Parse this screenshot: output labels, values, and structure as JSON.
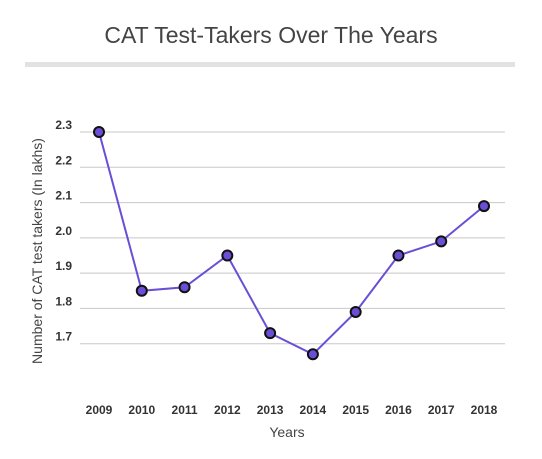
{
  "chart_data": {
    "type": "line",
    "title": "CAT Test-Takers Over The Years",
    "xlabel": "Years",
    "ylabel": "Number of CAT test takers (In lakhs)",
    "categories": [
      "2009",
      "2010",
      "2011",
      "2012",
      "2013",
      "2014",
      "2015",
      "2016",
      "2017",
      "2018"
    ],
    "series": [
      {
        "values": [
          2.3,
          1.85,
          1.86,
          1.95,
          1.73,
          1.67,
          1.79,
          1.95,
          1.99,
          2.09
        ]
      }
    ],
    "ylim": [
      1.6,
      2.3
    ],
    "yticks": [
      "1.7",
      "1.8",
      "1.9",
      "2.0",
      "2.1",
      "2.2",
      "2.3"
    ],
    "grid": true,
    "colors": {
      "line": "#6a4fd6",
      "marker_fill": "#6a4fd6",
      "marker_stroke": "#111111",
      "grid": "#c8c8c8"
    }
  }
}
